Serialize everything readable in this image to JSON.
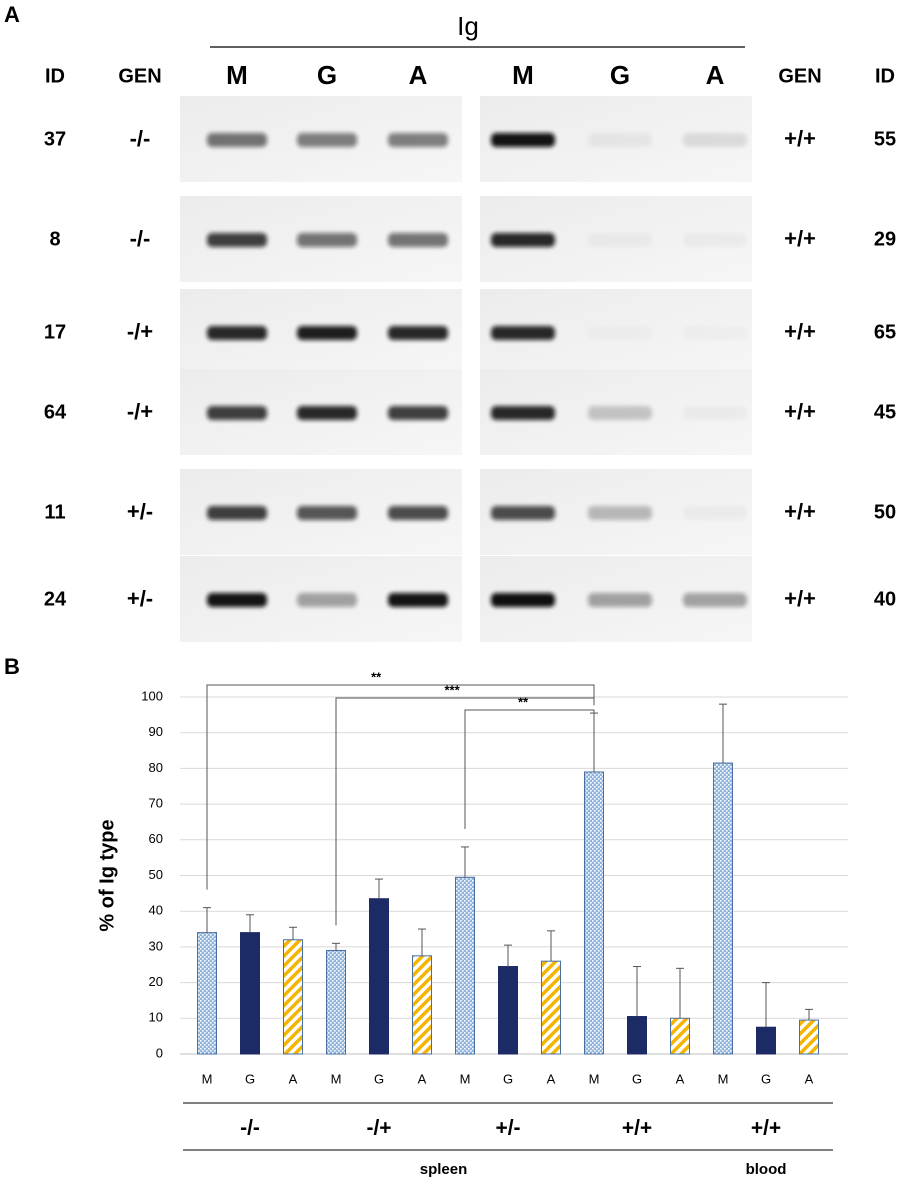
{
  "panel_a": {
    "label": "A",
    "title": "Ig",
    "headers": [
      "ID",
      "GEN",
      "M",
      "G",
      "A",
      "M",
      "G",
      "A",
      "GEN",
      "ID"
    ],
    "rows": [
      {
        "left_id": "37",
        "left_gen": "-/-",
        "right_gen": "+/+",
        "right_id": "55"
      },
      {
        "left_id": "8",
        "left_gen": "-/-",
        "right_gen": "+/+",
        "right_id": "29"
      },
      {
        "left_id": "17",
        "left_gen": "-/+",
        "right_gen": "+/+",
        "right_id": "65"
      },
      {
        "left_id": "64",
        "left_gen": "-/+",
        "right_gen": "+/+",
        "right_id": "45"
      },
      {
        "left_id": "11",
        "left_gen": "+/-",
        "right_gen": "+/+",
        "right_id": "50"
      },
      {
        "left_id": "24",
        "left_gen": "+/-",
        "right_gen": "+/+",
        "right_id": "40"
      }
    ]
  },
  "chart_data": {
    "type": "bar",
    "panel_label": "B",
    "y_label": "% of Ig type",
    "tissues": [
      {
        "name": "spleen",
        "groups": [
          "-/-",
          "-/+",
          "+/-",
          "+/+"
        ]
      },
      {
        "name": "blood",
        "groups": [
          "+/+"
        ]
      }
    ],
    "series": [
      {
        "name": "M",
        "color": "#8fb4dd",
        "pattern": "crosshatch",
        "values": [
          34,
          29,
          49.5,
          79,
          81.5
        ],
        "errors": [
          7,
          2,
          8.5,
          16.5,
          16.5
        ]
      },
      {
        "name": "G",
        "color": "#1c2a66",
        "pattern": "solid",
        "values": [
          34,
          43.5,
          24.5,
          10.5,
          7.5
        ],
        "errors": [
          5,
          5.5,
          6,
          14,
          12.5
        ]
      },
      {
        "name": "A",
        "color": "#f4b400",
        "pattern": "diagonal",
        "values": [
          32,
          27.5,
          26,
          10,
          9.5
        ],
        "errors": [
          3.5,
          7.5,
          8.5,
          14,
          3
        ]
      }
    ],
    "significance": [
      {
        "label": "**",
        "from": 0,
        "to": 3
      },
      {
        "label": "***",
        "from": 1,
        "to": 3
      },
      {
        "label": "**",
        "from": 2,
        "to": 3
      }
    ],
    "ylim": [
      0,
      100
    ],
    "yticks": [
      0,
      10,
      20,
      30,
      40,
      50,
      60,
      70,
      80,
      90,
      100
    ],
    "grid": true
  }
}
